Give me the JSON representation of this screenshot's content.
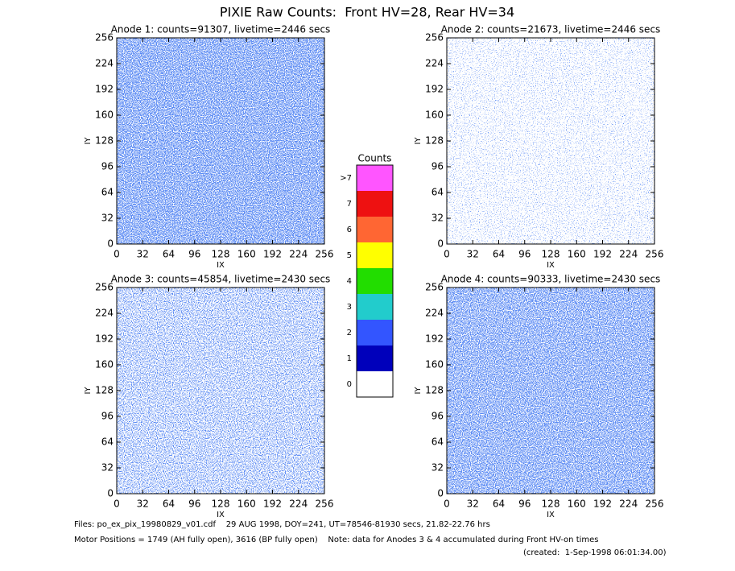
{
  "title": "PIXIE Raw Counts:  Front HV=28, Rear HV=34",
  "chart_data": [
    {
      "type": "heatmap",
      "title": "Anode 1: counts=91307, livetime=2446 secs",
      "x_label": "IX",
      "y_label": "IY",
      "xlim": [
        0,
        256
      ],
      "ylim": [
        0,
        256
      ],
      "xticks": [
        0,
        32,
        64,
        96,
        128,
        160,
        192,
        224,
        256
      ],
      "yticks": [
        0,
        32,
        64,
        96,
        128,
        160,
        192,
        224,
        256
      ]
    },
    {
      "type": "heatmap",
      "title": "Anode 2: counts=21673, livetime=2446 secs",
      "x_label": "IX",
      "y_label": "IY",
      "xlim": [
        0,
        256
      ],
      "ylim": [
        0,
        256
      ],
      "xticks": [
        0,
        32,
        64,
        96,
        128,
        160,
        192,
        224,
        256
      ],
      "yticks": [
        0,
        32,
        64,
        96,
        128,
        160,
        192,
        224,
        256
      ]
    },
    {
      "type": "heatmap",
      "title": "Anode 3: counts=45854, livetime=2430 secs",
      "x_label": "IX",
      "y_label": "IY",
      "xlim": [
        0,
        256
      ],
      "ylim": [
        0,
        256
      ],
      "xticks": [
        0,
        32,
        64,
        96,
        128,
        160,
        192,
        224,
        256
      ],
      "yticks": [
        0,
        32,
        64,
        96,
        128,
        160,
        192,
        224,
        256
      ]
    },
    {
      "type": "heatmap",
      "title": "Anode 4: counts=90333, livetime=2430 secs",
      "x_label": "IX",
      "y_label": "IY",
      "xlim": [
        0,
        256
      ],
      "ylim": [
        0,
        256
      ],
      "xticks": [
        0,
        32,
        64,
        96,
        128,
        160,
        192,
        224,
        256
      ],
      "yticks": [
        0,
        32,
        64,
        96,
        128,
        160,
        192,
        224,
        256
      ]
    }
  ],
  "colorbar": {
    "title": "Counts",
    "labels": [
      ">7",
      "7",
      "6",
      "5",
      "4",
      "3",
      "2",
      "1",
      "0"
    ],
    "colors": [
      "#ff55ff",
      "#ee1111",
      "#ff6633",
      "#ffff00",
      "#22dd00",
      "#22cccc",
      "#3355ff",
      "#0000bb",
      "#ffffff"
    ]
  },
  "footer": {
    "files": "Files: po_ex_pix_19980829_v01.cdf    29 AUG 1998, DOY=241, UT=78546-81930 secs, 21.82-22.76 hrs",
    "motor": "Motor Positions = 1749 (AH fully open), 3616 (BP fully open)    Note: data for Anodes 3 & 4 accumulated during Front HV-on times",
    "created": "(created:  1-Sep-1998 06:01:34.00)"
  }
}
